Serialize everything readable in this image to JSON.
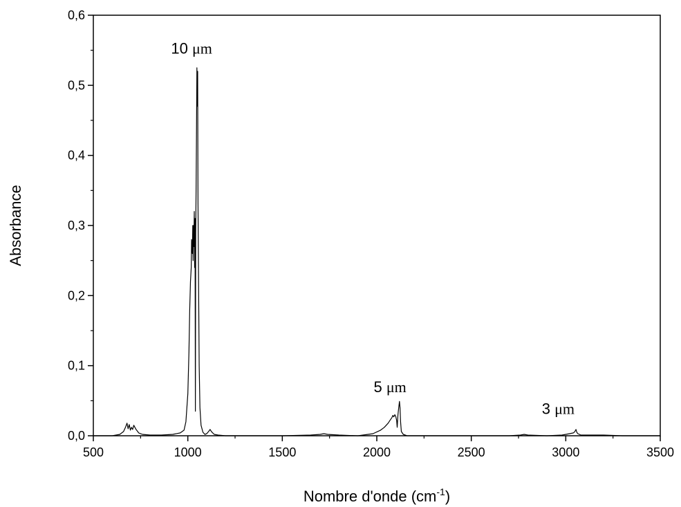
{
  "chart_data": {
    "type": "line",
    "xlabel": "Nombre d'onde (cm",
    "xlabel_sup": "-1",
    "xlabel_close": ")",
    "ylabel": "Absorbance",
    "xlim": [
      500,
      3500
    ],
    "ylim": [
      0,
      0.6
    ],
    "x_ticks": [
      500,
      1000,
      1500,
      2000,
      2500,
      3000,
      3500
    ],
    "x_tick_labels": [
      "500",
      "1000",
      "1500",
      "2000",
      "2500",
      "3000",
      "3500"
    ],
    "y_ticks": [
      0.0,
      0.1,
      0.2,
      0.3,
      0.4,
      0.5,
      0.6
    ],
    "y_tick_labels": [
      "0,0",
      "0,1",
      "0,2",
      "0,3",
      "0,4",
      "0,5",
      "0,6"
    ],
    "grid": false,
    "legend": "none",
    "line_color": "#000000",
    "annotations": [
      {
        "num": "10 ",
        "unit": "μm",
        "x": 1020,
        "y": 0.545
      },
      {
        "num": "5 ",
        "unit": "μm",
        "x": 2070,
        "y": 0.062
      },
      {
        "num": "3 ",
        "unit": "μm",
        "x": 2960,
        "y": 0.031
      }
    ],
    "series": [
      {
        "x": [
          500,
          600,
          640,
          660,
          670,
          678,
          684,
          690,
          696,
          702,
          708,
          714,
          720,
          726,
          732,
          740,
          760,
          800,
          860,
          920,
          960,
          980,
          990,
          1000,
          1006,
          1010,
          1014,
          1018,
          1020,
          1024,
          1026,
          1028,
          1030,
          1032,
          1034,
          1036,
          1038,
          1040,
          1042,
          1044,
          1046,
          1048,
          1050,
          1052,
          1054,
          1056,
          1058,
          1060,
          1064,
          1070,
          1080,
          1090,
          1100,
          1110,
          1118,
          1125,
          1132,
          1140,
          1160,
          1200,
          1300,
          1500,
          1650,
          1700,
          1720,
          1740,
          1800,
          1900,
          1980,
          2020,
          2040,
          2060,
          2070,
          2080,
          2085,
          2090,
          2095,
          2100,
          2105,
          2108,
          2112,
          2116,
          2120,
          2123,
          2126,
          2130,
          2140,
          2160,
          2200,
          2400,
          2700,
          2760,
          2780,
          2800,
          2900,
          2980,
          3000,
          3020,
          3040,
          3048,
          3054,
          3058,
          3064,
          3080,
          3120,
          3200,
          3300,
          3500
        ],
        "y": [
          0.0,
          0.0,
          0.002,
          0.006,
          0.012,
          0.018,
          0.01,
          0.016,
          0.008,
          0.012,
          0.009,
          0.015,
          0.012,
          0.009,
          0.007,
          0.004,
          0.002,
          0.001,
          0.001,
          0.002,
          0.004,
          0.008,
          0.02,
          0.06,
          0.12,
          0.18,
          0.22,
          0.24,
          0.28,
          0.26,
          0.3,
          0.25,
          0.3,
          0.27,
          0.32,
          0.24,
          0.31,
          0.035,
          0.29,
          0.36,
          0.43,
          0.525,
          0.47,
          0.52,
          0.33,
          0.25,
          0.18,
          0.1,
          0.04,
          0.015,
          0.005,
          0.002,
          0.003,
          0.006,
          0.009,
          0.006,
          0.004,
          0.002,
          0.001,
          0.0,
          0.0,
          0.0,
          0.001,
          0.002,
          0.003,
          0.002,
          0.001,
          0.0,
          0.003,
          0.008,
          0.012,
          0.018,
          0.022,
          0.026,
          0.029,
          0.027,
          0.03,
          0.028,
          0.022,
          0.012,
          0.03,
          0.04,
          0.049,
          0.04,
          0.02,
          0.006,
          0.002,
          0.0,
          0.0,
          0.0,
          0.0,
          0.001,
          0.002,
          0.001,
          0.0,
          0.001,
          0.002,
          0.003,
          0.004,
          0.006,
          0.009,
          0.005,
          0.003,
          0.001,
          0.001,
          0.001,
          0.0,
          0.0
        ]
      }
    ]
  }
}
